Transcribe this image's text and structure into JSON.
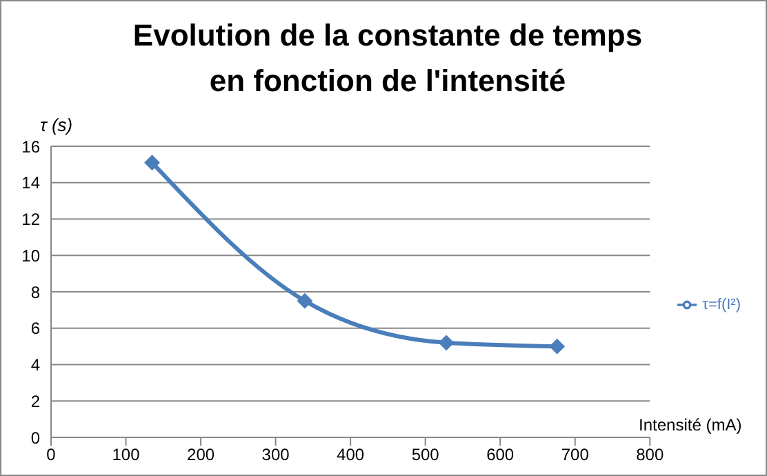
{
  "chart_data": {
    "type": "line",
    "title": "Evolution de la constante de temps en fonction de l'intensité",
    "xlabel": "Intensité (mA)",
    "ylabel": "τ (s)",
    "x": [
      135,
      339,
      528,
      676
    ],
    "series": [
      {
        "name": "τ=f(I²)",
        "color": "#4a7ebb",
        "values": [
          15.1,
          7.5,
          5.2,
          5.0
        ]
      }
    ],
    "xlim": [
      0,
      800
    ],
    "xticks": [
      0,
      100,
      200,
      300,
      400,
      500,
      600,
      700,
      800
    ],
    "ylim": [
      0,
      16
    ],
    "yticks": [
      0,
      2,
      4,
      6,
      8,
      10,
      12,
      14,
      16
    ],
    "grid": "y",
    "legend": "right",
    "marker": "diamond",
    "line_style": "solid"
  }
}
